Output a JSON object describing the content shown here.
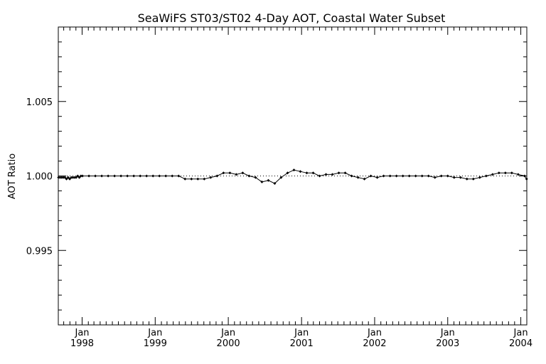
{
  "chart_data": {
    "type": "line",
    "title": "SeaWiFS ST03/ST02 4-Day AOT, Coastal Water Subset",
    "xlabel": "",
    "ylabel": "AOT Ratio",
    "ylim": [
      0.99,
      1.01
    ],
    "xlim": [
      "1997-09-04",
      "2004-01-31"
    ],
    "y_ticks": [
      "0.995",
      "1.000",
      "1.005"
    ],
    "x_ticks": [
      {
        "month": "Jan",
        "year": "1998",
        "date": "1998-01-01"
      },
      {
        "month": "Jan",
        "year": "1999",
        "date": "1999-01-01"
      },
      {
        "month": "Jan",
        "year": "2000",
        "date": "2000-01-01"
      },
      {
        "month": "Jan",
        "year": "2001",
        "date": "2001-01-01"
      },
      {
        "month": "Jan",
        "year": "2002",
        "date": "2002-01-01"
      },
      {
        "month": "Jan",
        "year": "2003",
        "date": "2003-01-01"
      },
      {
        "month": "Jan",
        "year": "2004",
        "date": "2004-01-01"
      }
    ],
    "reference_line": {
      "y": 1.0,
      "style": "dotted"
    },
    "colors": {
      "line": "#000000",
      "reference": "#000000",
      "background": "#ffffff"
    },
    "series": [
      {
        "x": [
          "1997-09-05",
          "1997-09-13",
          "1997-09-21",
          "1997-09-29",
          "1997-10-07",
          "1997-10-15",
          "1997-10-23",
          "1997-10-31",
          "1997-11-08",
          "1997-11-16",
          "1997-11-24",
          "1997-12-02",
          "1997-12-10",
          "1997-12-18",
          "1997-12-26",
          "1998-01-03",
          "1998-02-04",
          "1998-03-08",
          "1998-04-09",
          "1998-05-11",
          "1998-06-12",
          "1998-07-14",
          "1998-08-15",
          "1998-09-16",
          "1998-10-18",
          "1998-11-19",
          "1998-12-21",
          "1999-01-22",
          "1999-02-23",
          "1999-03-27",
          "1999-04-28",
          "1999-05-30",
          "1999-07-01",
          "1999-08-02",
          "1999-09-03",
          "1999-10-05",
          "1999-11-06",
          "1999-12-08",
          "2000-01-09",
          "2000-02-10",
          "2000-03-13",
          "2000-04-14",
          "2000-05-16",
          "2000-06-17",
          "2000-07-19",
          "2000-08-20",
          "2000-09-21",
          "2000-10-23",
          "2000-11-24",
          "2000-12-26",
          "2001-01-27",
          "2001-02-28",
          "2001-04-01",
          "2001-05-03",
          "2001-06-04",
          "2001-07-06",
          "2001-08-07",
          "2001-09-08",
          "2001-10-10",
          "2001-11-11",
          "2001-12-13",
          "2002-01-14",
          "2002-02-15",
          "2002-03-19",
          "2002-04-20",
          "2002-05-22",
          "2002-06-23",
          "2002-07-25",
          "2002-08-26",
          "2002-09-27",
          "2002-10-29",
          "2002-11-30",
          "2003-01-01",
          "2003-02-02",
          "2003-03-06",
          "2003-04-07",
          "2003-05-09",
          "2003-06-10",
          "2003-07-12",
          "2003-08-13",
          "2003-09-14",
          "2003-10-16",
          "2003-11-17",
          "2003-12-19",
          "2004-01-20",
          "2004-01-30"
        ],
        "y": [
          0.9999,
          0.9999,
          0.9999,
          0.9999,
          0.9999,
          0.9998,
          0.9999,
          0.9998,
          0.9999,
          0.9999,
          0.9999,
          0.9999,
          1.0,
          0.9999,
          1.0,
          1.0,
          1.0,
          1.0,
          1.0,
          1.0,
          1.0,
          1.0,
          1.0,
          1.0,
          1.0,
          1.0,
          1.0,
          1.0,
          1.0,
          1.0,
          1.0,
          0.9998,
          0.9998,
          0.9998,
          0.9998,
          0.9999,
          1.0,
          1.0002,
          1.0002,
          1.0001,
          1.0002,
          1.0,
          0.9999,
          0.9996,
          0.9997,
          0.9995,
          0.9999,
          1.0002,
          1.0004,
          1.0003,
          1.0002,
          1.0002,
          1.0,
          1.0001,
          1.0001,
          1.0002,
          1.0002,
          1.0,
          0.9999,
          0.9998,
          1.0,
          0.9999,
          1.0,
          1.0,
          1.0,
          1.0,
          1.0,
          1.0,
          1.0,
          1.0,
          0.9999,
          1.0,
          1.0,
          0.9999,
          0.9999,
          0.9998,
          0.9998,
          0.9999,
          1.0,
          1.0001,
          1.0002,
          1.0002,
          1.0002,
          1.0001,
          1.0,
          0.9998
        ]
      }
    ]
  }
}
